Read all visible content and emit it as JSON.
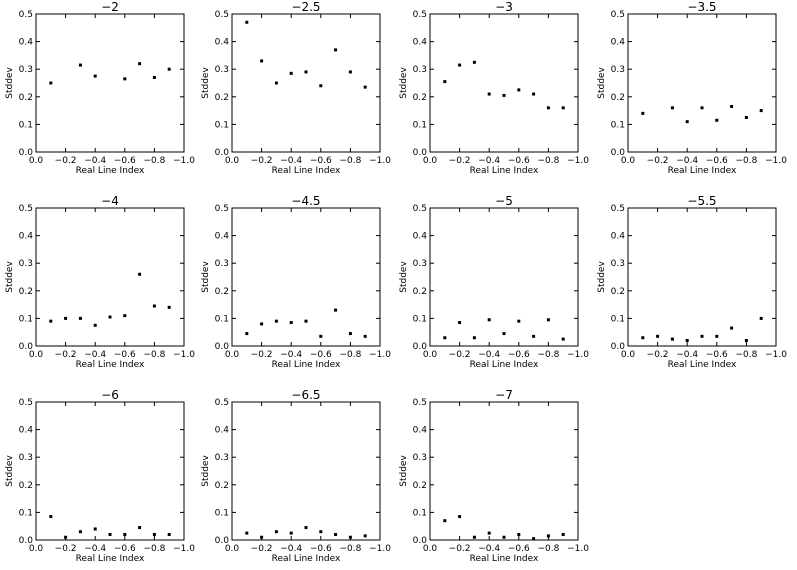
{
  "figure": {
    "xlabel": "Real Line Index",
    "ylabel": "Stddev"
  },
  "chart_data": [
    {
      "type": "scatter",
      "title": "−2",
      "xlabel": "Real Line Index",
      "ylabel": "Stddev",
      "xlim": [
        0.0,
        -1.0
      ],
      "ylim": [
        0.0,
        0.5
      ],
      "xticks": [
        "0.0",
        "−0.2",
        "−0.4",
        "−0.6",
        "−0.8",
        "−1.0"
      ],
      "yticks": [
        "0.0",
        "0.1",
        "0.2",
        "0.3",
        "0.4",
        "0.5"
      ],
      "x": [
        -0.1,
        -0.3,
        -0.4,
        -0.6,
        -0.7,
        -0.8,
        -0.9
      ],
      "y": [
        0.25,
        0.315,
        0.275,
        0.265,
        0.32,
        0.27,
        0.3
      ]
    },
    {
      "type": "scatter",
      "title": "−2.5",
      "xlabel": "Real Line Index",
      "ylabel": "Stddev",
      "xlim": [
        0.0,
        -1.0
      ],
      "ylim": [
        0.0,
        0.5
      ],
      "xticks": [
        "0.0",
        "−0.2",
        "−0.4",
        "−0.6",
        "−0.8",
        "−1.0"
      ],
      "yticks": [
        "0.0",
        "0.1",
        "0.2",
        "0.3",
        "0.4",
        "0.5"
      ],
      "x": [
        -0.1,
        -0.2,
        -0.3,
        -0.4,
        -0.5,
        -0.6,
        -0.7,
        -0.8,
        -0.9
      ],
      "y": [
        0.47,
        0.33,
        0.25,
        0.285,
        0.29,
        0.24,
        0.37,
        0.29,
        0.235
      ]
    },
    {
      "type": "scatter",
      "title": "−3",
      "xlabel": "Real Line Index",
      "ylabel": "Stddev",
      "xlim": [
        0.0,
        -1.0
      ],
      "ylim": [
        0.0,
        0.5
      ],
      "xticks": [
        "0.0",
        "−0.2",
        "−0.4",
        "−0.6",
        "−0.8",
        "−1.0"
      ],
      "yticks": [
        "0.0",
        "0.1",
        "0.2",
        "0.3",
        "0.4",
        "0.5"
      ],
      "x": [
        -0.1,
        -0.2,
        -0.3,
        -0.4,
        -0.5,
        -0.6,
        -0.7,
        -0.8,
        -0.9
      ],
      "y": [
        0.255,
        0.315,
        0.325,
        0.21,
        0.205,
        0.225,
        0.21,
        0.16,
        0.16
      ]
    },
    {
      "type": "scatter",
      "title": "−3.5",
      "xlabel": "Real Line Index",
      "ylabel": "Stddev",
      "xlim": [
        0.0,
        -1.0
      ],
      "ylim": [
        0.0,
        0.5
      ],
      "xticks": [
        "0.0",
        "−0.2",
        "−0.4",
        "−0.6",
        "−0.8",
        "−1.0"
      ],
      "yticks": [
        "0.0",
        "0.1",
        "0.2",
        "0.3",
        "0.4",
        "0.5"
      ],
      "x": [
        -0.1,
        -0.3,
        -0.4,
        -0.5,
        -0.6,
        -0.7,
        -0.8,
        -0.9
      ],
      "y": [
        0.14,
        0.16,
        0.11,
        0.16,
        0.115,
        0.165,
        0.125,
        0.15
      ]
    },
    {
      "type": "scatter",
      "title": "−4",
      "xlabel": "Real Line Index",
      "ylabel": "Stddev",
      "xlim": [
        0.0,
        -1.0
      ],
      "ylim": [
        0.0,
        0.5
      ],
      "xticks": [
        "0.0",
        "−0.2",
        "−0.4",
        "−0.6",
        "−0.8",
        "−1.0"
      ],
      "yticks": [
        "0.0",
        "0.1",
        "0.2",
        "0.3",
        "0.4",
        "0.5"
      ],
      "x": [
        -0.1,
        -0.2,
        -0.3,
        -0.4,
        -0.5,
        -0.6,
        -0.7,
        -0.8,
        -0.9
      ],
      "y": [
        0.09,
        0.1,
        0.1,
        0.075,
        0.105,
        0.11,
        0.26,
        0.145,
        0.14
      ]
    },
    {
      "type": "scatter",
      "title": "−4.5",
      "xlabel": "Real Line Index",
      "ylabel": "Stddev",
      "xlim": [
        0.0,
        -1.0
      ],
      "ylim": [
        0.0,
        0.5
      ],
      "xticks": [
        "0.0",
        "−0.2",
        "−0.4",
        "−0.6",
        "−0.8",
        "−1.0"
      ],
      "yticks": [
        "0.0",
        "0.1",
        "0.2",
        "0.3",
        "0.4",
        "0.5"
      ],
      "x": [
        -0.1,
        -0.2,
        -0.3,
        -0.4,
        -0.5,
        -0.6,
        -0.7,
        -0.8,
        -0.9
      ],
      "y": [
        0.045,
        0.08,
        0.09,
        0.085,
        0.09,
        0.035,
        0.13,
        0.045,
        0.035
      ]
    },
    {
      "type": "scatter",
      "title": "−5",
      "xlabel": "Real Line Index",
      "ylabel": "Stddev",
      "xlim": [
        0.0,
        -1.0
      ],
      "ylim": [
        0.0,
        0.5
      ],
      "xticks": [
        "0.0",
        "−0.2",
        "−0.4",
        "−0.6",
        "−0.8",
        "−1.0"
      ],
      "yticks": [
        "0.0",
        "0.1",
        "0.2",
        "0.3",
        "0.4",
        "0.5"
      ],
      "x": [
        -0.1,
        -0.2,
        -0.3,
        -0.4,
        -0.5,
        -0.6,
        -0.7,
        -0.8,
        -0.9
      ],
      "y": [
        0.03,
        0.085,
        0.03,
        0.095,
        0.045,
        0.09,
        0.035,
        0.095,
        0.025
      ]
    },
    {
      "type": "scatter",
      "title": "−5.5",
      "xlabel": "Real Line Index",
      "ylabel": "Stddev",
      "xlim": [
        0.0,
        -1.0
      ],
      "ylim": [
        0.0,
        0.5
      ],
      "xticks": [
        "0.0",
        "−0.2",
        "−0.4",
        "−0.6",
        "−0.8",
        "−1.0"
      ],
      "yticks": [
        "0.0",
        "0.1",
        "0.2",
        "0.3",
        "0.4",
        "0.5"
      ],
      "x": [
        -0.1,
        -0.2,
        -0.3,
        -0.4,
        -0.5,
        -0.6,
        -0.7,
        -0.8,
        -0.9
      ],
      "y": [
        0.03,
        0.035,
        0.025,
        0.02,
        0.035,
        0.035,
        0.065,
        0.02,
        0.1
      ]
    },
    {
      "type": "scatter",
      "title": "−6",
      "xlabel": "Real Line Index",
      "ylabel": "Stddev",
      "xlim": [
        0.0,
        -1.0
      ],
      "ylim": [
        0.0,
        0.5
      ],
      "xticks": [
        "0.0",
        "−0.2",
        "−0.4",
        "−0.6",
        "−0.8",
        "−1.0"
      ],
      "yticks": [
        "0.0",
        "0.1",
        "0.2",
        "0.3",
        "0.4",
        "0.5"
      ],
      "x": [
        -0.1,
        -0.2,
        -0.3,
        -0.4,
        -0.5,
        -0.6,
        -0.7,
        -0.8,
        -0.9
      ],
      "y": [
        0.085,
        0.01,
        0.03,
        0.04,
        0.02,
        0.02,
        0.045,
        0.02,
        0.02
      ]
    },
    {
      "type": "scatter",
      "title": "−6.5",
      "xlabel": "Real Line Index",
      "ylabel": "Stddev",
      "xlim": [
        0.0,
        -1.0
      ],
      "ylim": [
        0.0,
        0.5
      ],
      "xticks": [
        "0.0",
        "−0.2",
        "−0.4",
        "−0.6",
        "−0.8",
        "−1.0"
      ],
      "yticks": [
        "0.0",
        "0.1",
        "0.2",
        "0.3",
        "0.4",
        "0.5"
      ],
      "x": [
        -0.1,
        -0.2,
        -0.3,
        -0.4,
        -0.5,
        -0.6,
        -0.7,
        -0.8,
        -0.9
      ],
      "y": [
        0.025,
        0.01,
        0.03,
        0.025,
        0.045,
        0.03,
        0.02,
        0.01,
        0.015
      ]
    },
    {
      "type": "scatter",
      "title": "−7",
      "xlabel": "Real Line Index",
      "ylabel": "Stddev",
      "xlim": [
        0.0,
        -1.0
      ],
      "ylim": [
        0.0,
        0.5
      ],
      "xticks": [
        "0.0",
        "−0.2",
        "−0.4",
        "−0.6",
        "−0.8",
        "−1.0"
      ],
      "yticks": [
        "0.0",
        "0.1",
        "0.2",
        "0.3",
        "0.4",
        "0.5"
      ],
      "x": [
        -0.1,
        -0.2,
        -0.3,
        -0.4,
        -0.5,
        -0.6,
        -0.7,
        -0.8,
        -0.9
      ],
      "y": [
        0.07,
        0.085,
        0.01,
        0.025,
        0.01,
        0.02,
        0.005,
        0.015,
        0.02
      ]
    }
  ]
}
